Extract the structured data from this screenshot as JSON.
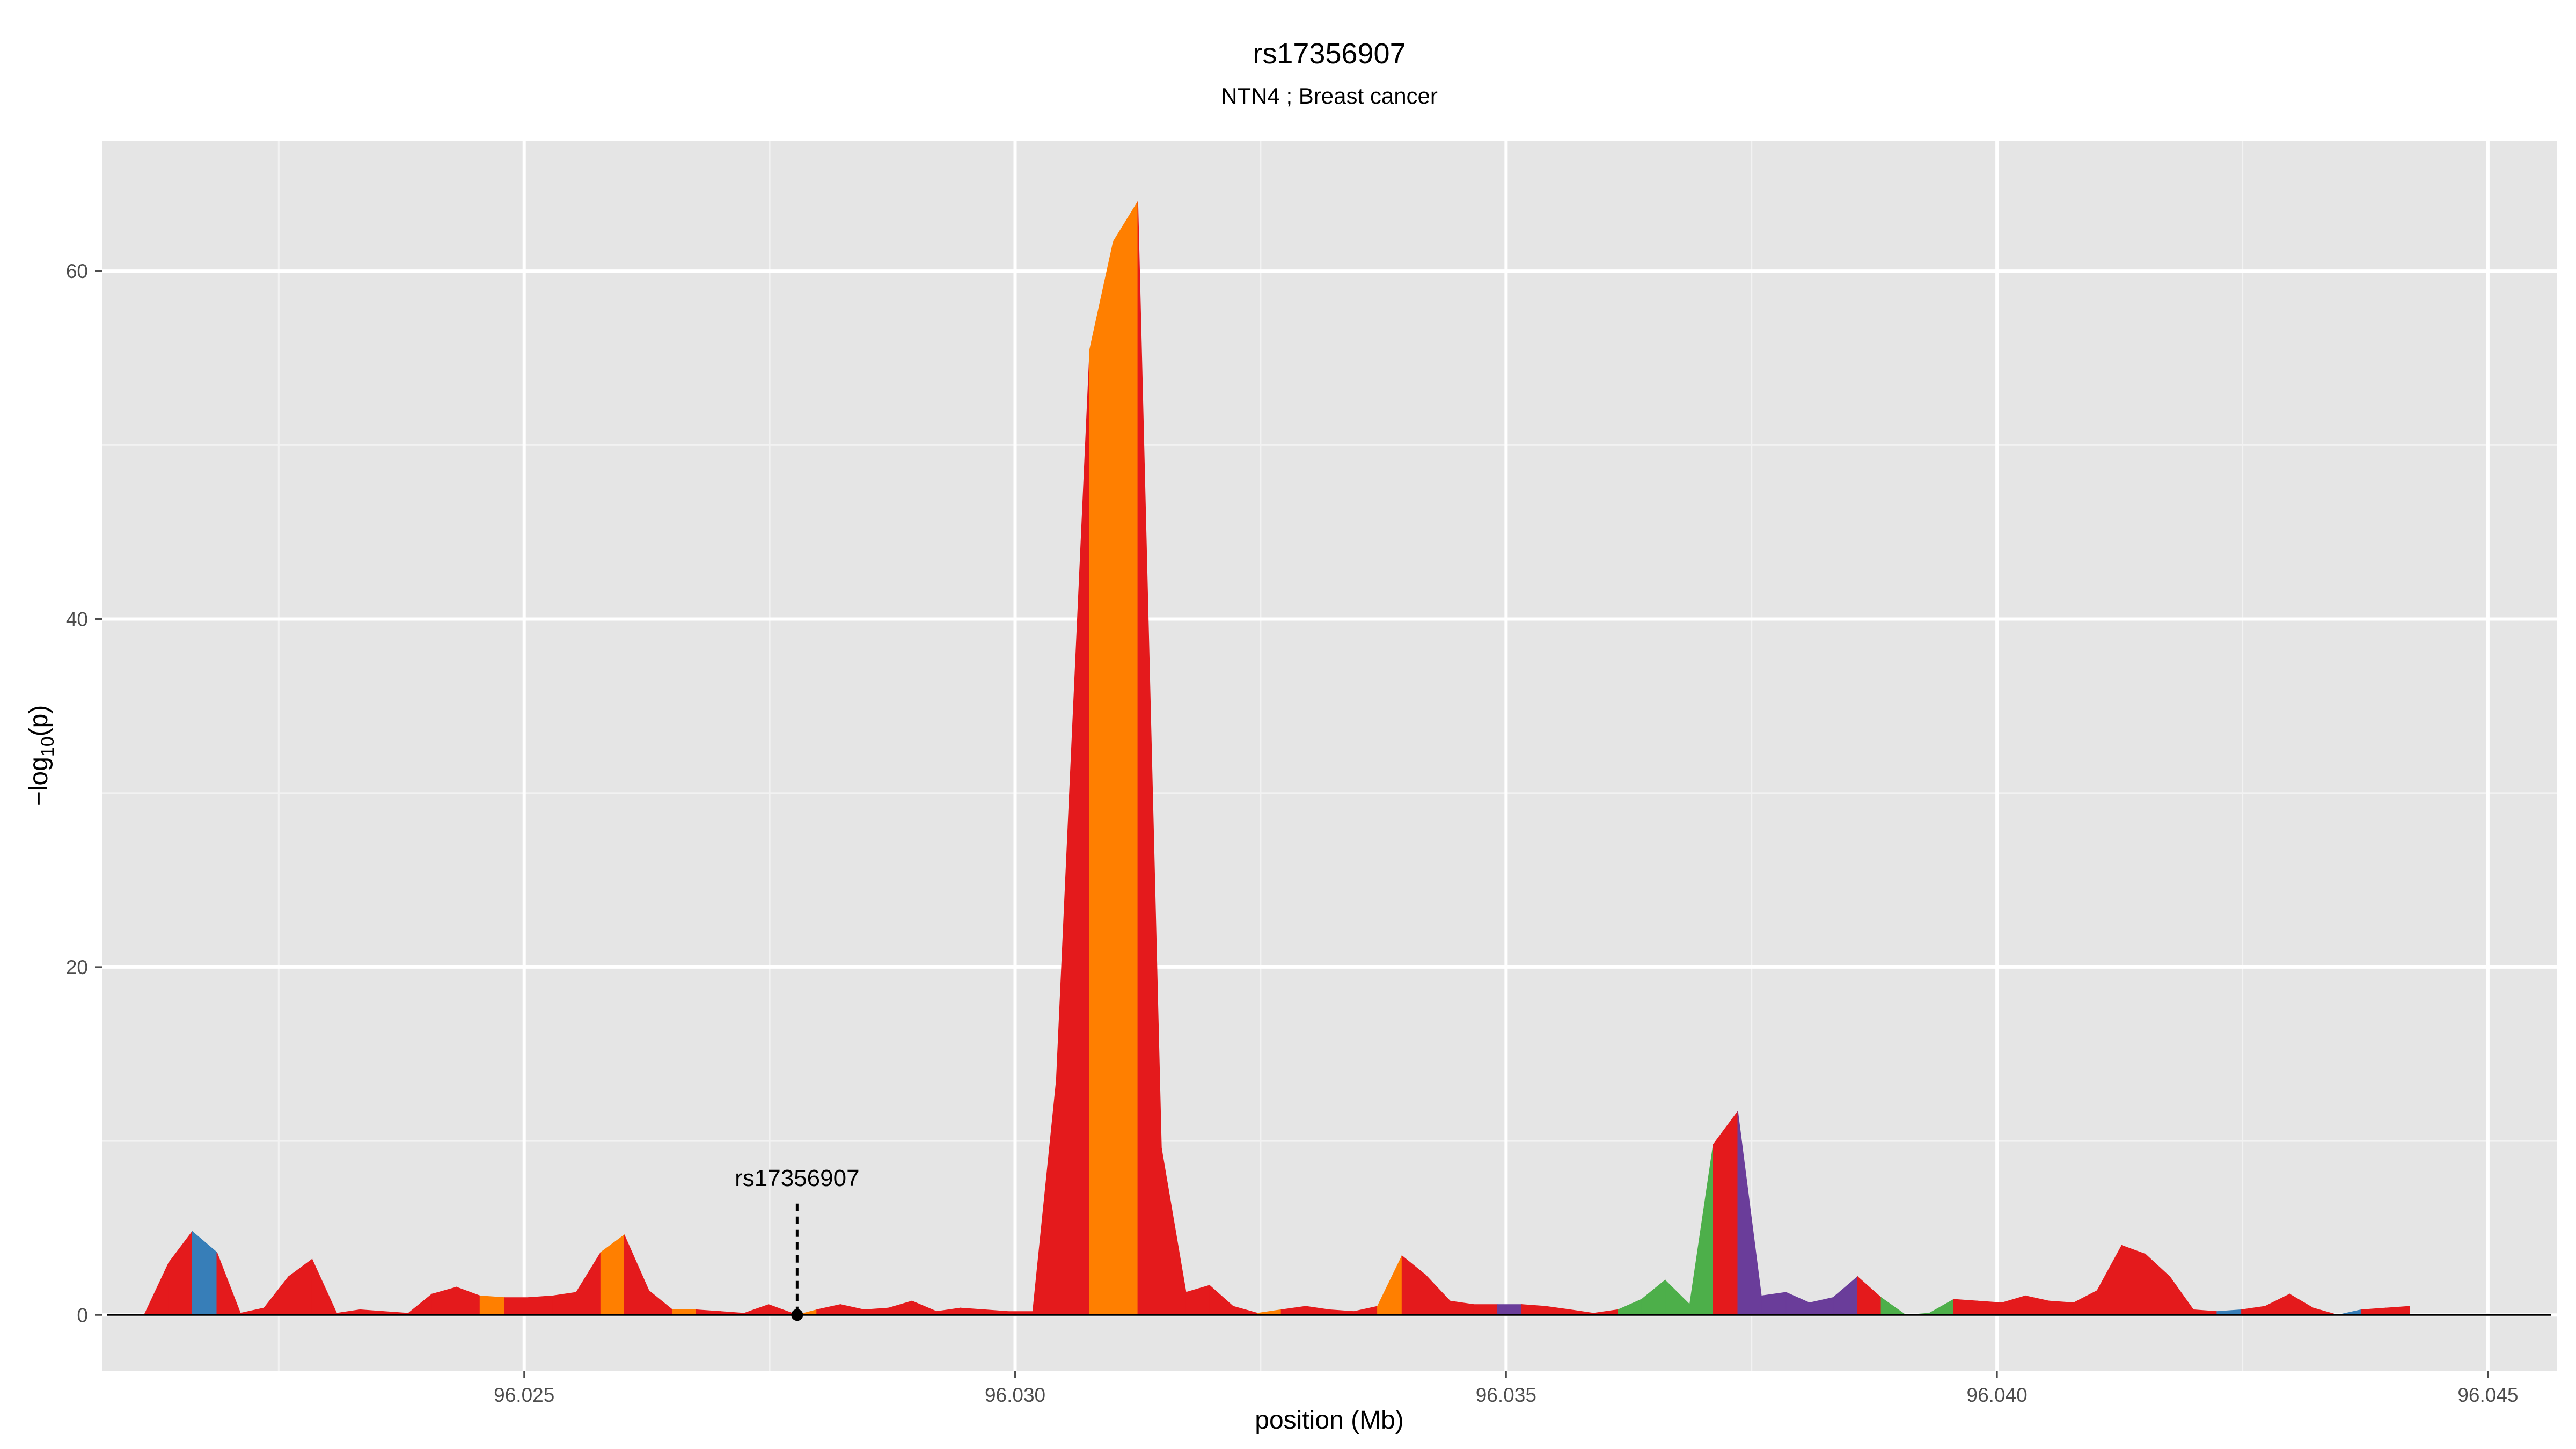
{
  "chart_data": {
    "type": "area",
    "title": "rs17356907",
    "subtitle": "NTN4 ; Breast cancer",
    "xlabel": "position (Mb)",
    "ylabel": "-log10(p)",
    "ylabel_main": "−log",
    "ylabel_sub": "10",
    "ylabel_tail": "(p)",
    "xlim": [
      96.0207,
      96.0457
    ],
    "ylim": [
      -3.2,
      67.5
    ],
    "x_ticks": [
      96.025,
      96.03,
      96.035,
      96.04,
      96.045
    ],
    "x_tick_labels": [
      "96.025",
      "96.030",
      "96.035",
      "96.040",
      "96.045"
    ],
    "y_ticks": [
      0,
      20,
      40,
      60
    ],
    "y_tick_labels": [
      "0",
      "20",
      "40",
      "60"
    ],
    "grid": true,
    "legend": "none",
    "colors": {
      "panel": "#e5e5e5",
      "red": "#e41a1c",
      "orange": "#ff7f00",
      "blue": "#377eb8",
      "green": "#4daf4a",
      "purple": "#6a3d9a"
    },
    "points": [
      [
        96.02113,
        0.0,
        "red"
      ],
      [
        96.02138,
        3.0,
        "red"
      ],
      [
        96.02162,
        4.8,
        "blue"
      ],
      [
        96.02187,
        3.6,
        "red"
      ],
      [
        96.02211,
        0.1,
        "red"
      ],
      [
        96.02235,
        0.4,
        "red"
      ],
      [
        96.0226,
        2.2,
        "red"
      ],
      [
        96.02284,
        3.2,
        "red"
      ],
      [
        96.02309,
        0.1,
        "red"
      ],
      [
        96.02333,
        0.3,
        "red"
      ],
      [
        96.02357,
        0.2,
        "red"
      ],
      [
        96.02382,
        0.1,
        "red"
      ],
      [
        96.02406,
        1.2,
        "red"
      ],
      [
        96.02431,
        1.6,
        "red"
      ],
      [
        96.02455,
        1.1,
        "orange"
      ],
      [
        96.0248,
        1.0,
        "red"
      ],
      [
        96.02504,
        1.0,
        "red"
      ],
      [
        96.02529,
        1.1,
        "red"
      ],
      [
        96.02553,
        1.3,
        "red"
      ],
      [
        96.02578,
        3.6,
        "orange"
      ],
      [
        96.02602,
        4.6,
        "red"
      ],
      [
        96.02627,
        1.4,
        "red"
      ],
      [
        96.02651,
        0.3,
        "orange"
      ],
      [
        96.02675,
        0.3,
        "red"
      ],
      [
        96.027,
        0.2,
        "red"
      ],
      [
        96.02724,
        0.1,
        "red"
      ],
      [
        96.02749,
        0.6,
        "red"
      ],
      [
        96.02778,
        0.0,
        "orange"
      ],
      [
        96.02798,
        0.3,
        "red"
      ],
      [
        96.02822,
        0.6,
        "red"
      ],
      [
        96.02846,
        0.3,
        "red"
      ],
      [
        96.02871,
        0.4,
        "red"
      ],
      [
        96.02895,
        0.8,
        "red"
      ],
      [
        96.0292,
        0.2,
        "red"
      ],
      [
        96.02944,
        0.4,
        "red"
      ],
      [
        96.02969,
        0.3,
        "red"
      ],
      [
        96.02993,
        0.2,
        "red"
      ],
      [
        96.03018,
        0.2,
        "red"
      ],
      [
        96.03042,
        13.5,
        "red"
      ],
      [
        96.03076,
        55.5,
        "orange"
      ],
      [
        96.031,
        61.7,
        "orange"
      ],
      [
        96.03125,
        64.0,
        "red"
      ],
      [
        96.03149,
        9.6,
        "red"
      ],
      [
        96.03174,
        1.3,
        "red"
      ],
      [
        96.03198,
        1.7,
        "red"
      ],
      [
        96.03222,
        0.5,
        "red"
      ],
      [
        96.03247,
        0.1,
        "orange"
      ],
      [
        96.03271,
        0.3,
        "red"
      ],
      [
        96.03296,
        0.5,
        "red"
      ],
      [
        96.0332,
        0.3,
        "red"
      ],
      [
        96.03345,
        0.2,
        "red"
      ],
      [
        96.03369,
        0.5,
        "orange"
      ],
      [
        96.03394,
        3.4,
        "red"
      ],
      [
        96.03418,
        2.3,
        "red"
      ],
      [
        96.03443,
        0.8,
        "red"
      ],
      [
        96.03467,
        0.6,
        "red"
      ],
      [
        96.03491,
        0.6,
        "purple"
      ],
      [
        96.03516,
        0.6,
        "red"
      ],
      [
        96.0354,
        0.5,
        "red"
      ],
      [
        96.03565,
        0.3,
        "red"
      ],
      [
        96.03589,
        0.1,
        "red"
      ],
      [
        96.03614,
        0.3,
        "green"
      ],
      [
        96.03638,
        0.9,
        "green"
      ],
      [
        96.03662,
        2.0,
        "green"
      ],
      [
        96.03687,
        0.6,
        "green"
      ],
      [
        96.03711,
        9.8,
        "red"
      ],
      [
        96.03736,
        11.7,
        "purple"
      ],
      [
        96.0376,
        1.1,
        "purple"
      ],
      [
        96.03785,
        1.3,
        "purple"
      ],
      [
        96.03809,
        0.7,
        "purple"
      ],
      [
        96.03833,
        1.0,
        "purple"
      ],
      [
        96.03858,
        2.2,
        "red"
      ],
      [
        96.03882,
        1.0,
        "green"
      ],
      [
        96.03907,
        0.0,
        "green"
      ],
      [
        96.03931,
        0.1,
        "green"
      ],
      [
        96.03956,
        0.9,
        "red"
      ],
      [
        96.0398,
        0.8,
        "red"
      ],
      [
        96.04005,
        0.7,
        "red"
      ],
      [
        96.04029,
        1.1,
        "red"
      ],
      [
        96.04053,
        0.8,
        "red"
      ],
      [
        96.04078,
        0.7,
        "red"
      ],
      [
        96.04102,
        1.4,
        "red"
      ],
      [
        96.04127,
        4.0,
        "red"
      ],
      [
        96.04151,
        3.5,
        "red"
      ],
      [
        96.04176,
        2.2,
        "red"
      ],
      [
        96.042,
        0.3,
        "red"
      ],
      [
        96.04224,
        0.2,
        "blue"
      ],
      [
        96.04249,
        0.3,
        "red"
      ],
      [
        96.04273,
        0.5,
        "red"
      ],
      [
        96.04298,
        1.2,
        "red"
      ],
      [
        96.04322,
        0.4,
        "red"
      ],
      [
        96.04347,
        0.0,
        "blue"
      ],
      [
        96.04371,
        0.3,
        "red"
      ],
      [
        96.04396,
        0.4,
        "red"
      ],
      [
        96.0442,
        0.5,
        "red"
      ]
    ],
    "annotation": {
      "label": "rs17356907",
      "x": 96.02778,
      "y": 0.0,
      "label_y": 7.9
    }
  }
}
